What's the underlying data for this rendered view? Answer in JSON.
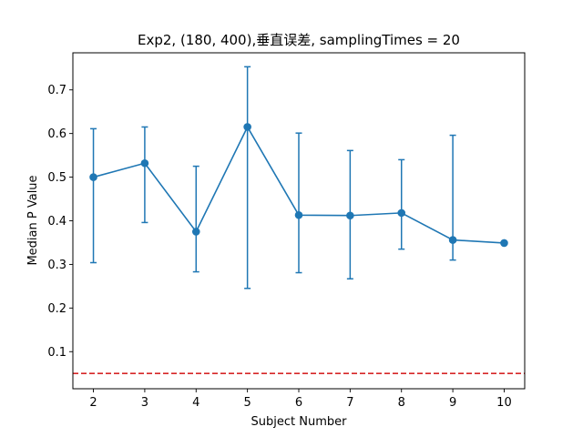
{
  "chart_data": {
    "type": "line",
    "title": "Exp2, (180, 400),垂直误差, samplingTimes = 20",
    "xlabel": "Subject Number",
    "ylabel": "Median P Value",
    "x": [
      2,
      3,
      4,
      5,
      6,
      7,
      8,
      9,
      10
    ],
    "xticks": [
      "2",
      "3",
      "4",
      "5",
      "6",
      "7",
      "8",
      "9",
      "10"
    ],
    "yticks": [
      "0.1",
      "0.2",
      "0.3",
      "0.4",
      "0.5",
      "0.6",
      "0.7"
    ],
    "xlim": [
      1.6,
      10.4
    ],
    "ylim": [
      0.015,
      0.785
    ],
    "series": [
      {
        "values": [
          0.5,
          0.532,
          0.375,
          0.615,
          0.413,
          0.412,
          0.418,
          0.356,
          0.349
        ],
        "err_low": [
          0.304,
          0.396,
          0.283,
          0.245,
          0.281,
          0.267,
          0.335,
          0.31,
          null
        ],
        "err_high": [
          0.611,
          0.615,
          0.525,
          0.753,
          0.601,
          0.561,
          0.54,
          0.596,
          null
        ],
        "color": "#1f77b4"
      }
    ],
    "reference_line": {
      "y": 0.05,
      "color": "#d62728",
      "style": "dashed"
    },
    "grid": false,
    "legend": false
  }
}
